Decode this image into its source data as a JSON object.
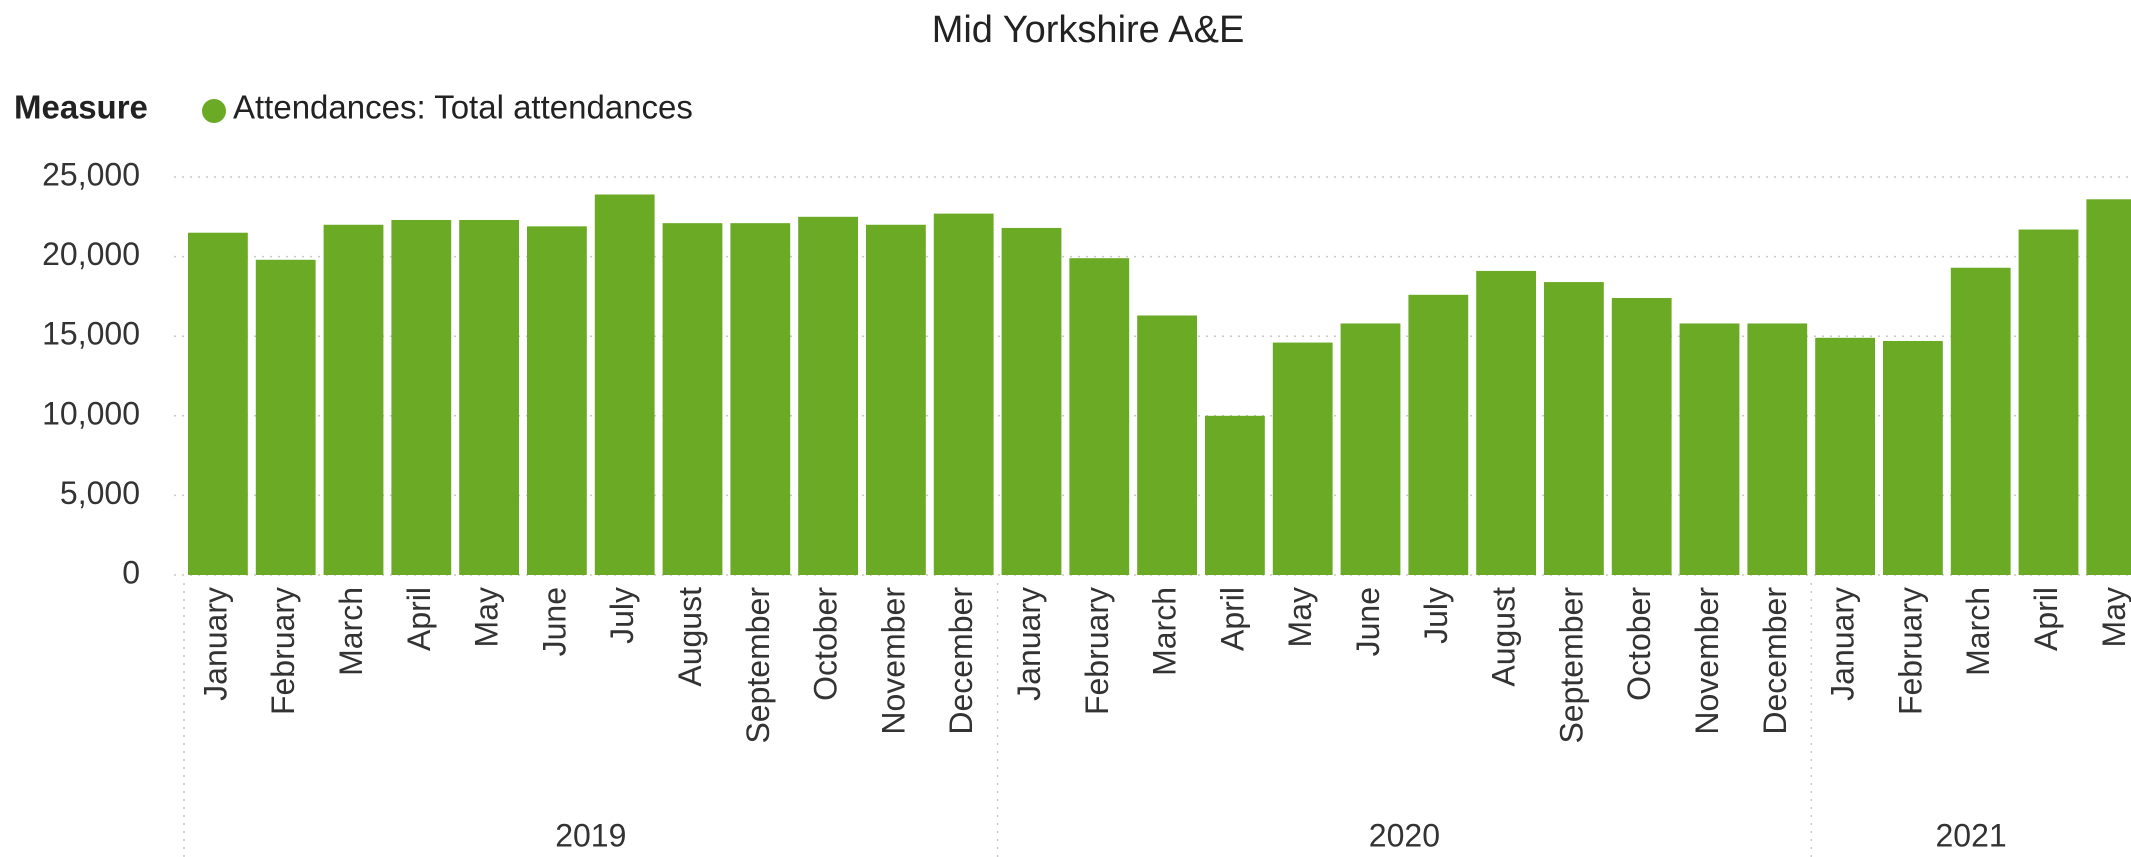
{
  "chart_data": {
    "type": "bar",
    "title": "Mid Yorkshire A&E",
    "legend_title": "Measure",
    "series": [
      {
        "name": "Attendances: Total attendances",
        "color": "#6aaa24",
        "values": [
          21500,
          19800,
          22000,
          22300,
          22300,
          21900,
          23900,
          22100,
          22100,
          22500,
          22000,
          22700,
          21800,
          19900,
          16300,
          10000,
          14600,
          15800,
          17600,
          19100,
          18400,
          17400,
          15800,
          15800,
          14900,
          14700,
          19300,
          21700,
          23600
        ]
      }
    ],
    "categories": [
      "January",
      "February",
      "March",
      "April",
      "May",
      "June",
      "July",
      "August",
      "September",
      "October",
      "November",
      "December",
      "January",
      "February",
      "March",
      "April",
      "May",
      "June",
      "July",
      "August",
      "September",
      "October",
      "November",
      "December",
      "January",
      "February",
      "March",
      "April",
      "May"
    ],
    "year_groups": [
      "2019",
      "2020",
      "2021"
    ],
    "ylim": [
      0,
      25000
    ],
    "yticks": [
      0,
      {
        "value": 5000,
        "label": "5,000"
      },
      {
        "value": 10000,
        "label": "10,000"
      },
      {
        "value": 15000,
        "label": "15,000"
      },
      {
        "value": 20000,
        "label": "20,000"
      },
      {
        "value": 25000,
        "label": "25,000"
      }
    ],
    "grid": true
  }
}
